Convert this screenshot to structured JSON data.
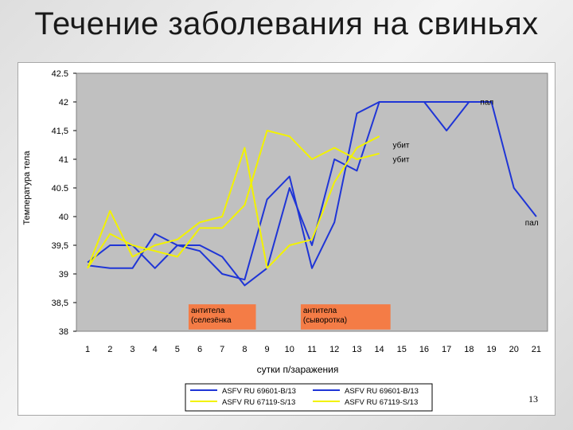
{
  "slide": {
    "title": "Течение заболевания на свиньях",
    "page_number": "13"
  },
  "chart_data": {
    "type": "line",
    "title": "",
    "xlabel": "сутки п/заражения",
    "ylabel": "Температура тела",
    "categories": [
      "1",
      "2",
      "3",
      "4",
      "5",
      "6",
      "7",
      "8",
      "9",
      "10",
      "11",
      "12",
      "13",
      "14",
      "15",
      "16",
      "17",
      "18",
      "19",
      "20",
      "21"
    ],
    "xlim": [
      1,
      21
    ],
    "ylim": [
      38,
      42.5
    ],
    "y_ticks": [
      "38",
      "38,5",
      "39",
      "39,5",
      "40",
      "40.5",
      "41",
      "41,5",
      "42",
      "42.5"
    ],
    "grid": false,
    "plot_background": "#c0c0c0",
    "legend_position": "bottom",
    "series": [
      {
        "name": "ASFV RU 69601-B/13",
        "color": "#1f35d6",
        "values": [
          39.2,
          39.5,
          39.5,
          39.1,
          39.5,
          39.5,
          39.3,
          38.8,
          39.1,
          40.5,
          39.5,
          41.0,
          40.8,
          42.0,
          42.0,
          42.0,
          41.5,
          42.0,
          42.0,
          40.5,
          40.0
        ]
      },
      {
        "name": "ASFV RU 69601-B/13",
        "color": "#1f35d6",
        "values": [
          39.15,
          39.1,
          39.1,
          39.7,
          39.5,
          39.4,
          39.0,
          38.9,
          40.3,
          40.7,
          39.1,
          39.9,
          41.8,
          42.0,
          42.0,
          42.0,
          42.0,
          42.0,
          null,
          null,
          null
        ]
      },
      {
        "name": "ASFV RU 67119-S/13",
        "color": "#f2f200",
        "values": [
          39.1,
          40.1,
          39.3,
          39.5,
          39.6,
          39.9,
          40.0,
          41.2,
          39.1,
          39.5,
          39.6,
          40.6,
          41.2,
          41.4,
          null,
          null,
          null,
          null,
          null,
          null,
          null
        ]
      },
      {
        "name": "ASFV RU 67119-S/13",
        "color": "#f2f200",
        "values": [
          39.1,
          39.7,
          39.5,
          39.4,
          39.3,
          39.8,
          39.8,
          40.2,
          41.5,
          41.4,
          41.0,
          41.2,
          41.0,
          41.1,
          null,
          null,
          null,
          null,
          null,
          null,
          null
        ]
      }
    ],
    "annotations": [
      {
        "text": "пал",
        "x": 18.5,
        "y": 41.95
      },
      {
        "text": "убит",
        "x": 14.6,
        "y": 41.2
      },
      {
        "text": "убит",
        "x": 14.6,
        "y": 40.95
      },
      {
        "text": "пал",
        "x": 20.5,
        "y": 39.85
      }
    ],
    "antibody_boxes": [
      {
        "lines": [
          "антитела",
          "(селезёнка"
        ],
        "x_from": 5.5,
        "x_to": 8.5,
        "y_from": 38.03,
        "y_to": 38.47
      },
      {
        "lines": [
          "антитела",
          "(сыворотка)"
        ],
        "x_from": 10.5,
        "x_to": 14.5,
        "y_from": 38.03,
        "y_to": 38.47
      }
    ],
    "antibody_color": "#f47c46"
  }
}
